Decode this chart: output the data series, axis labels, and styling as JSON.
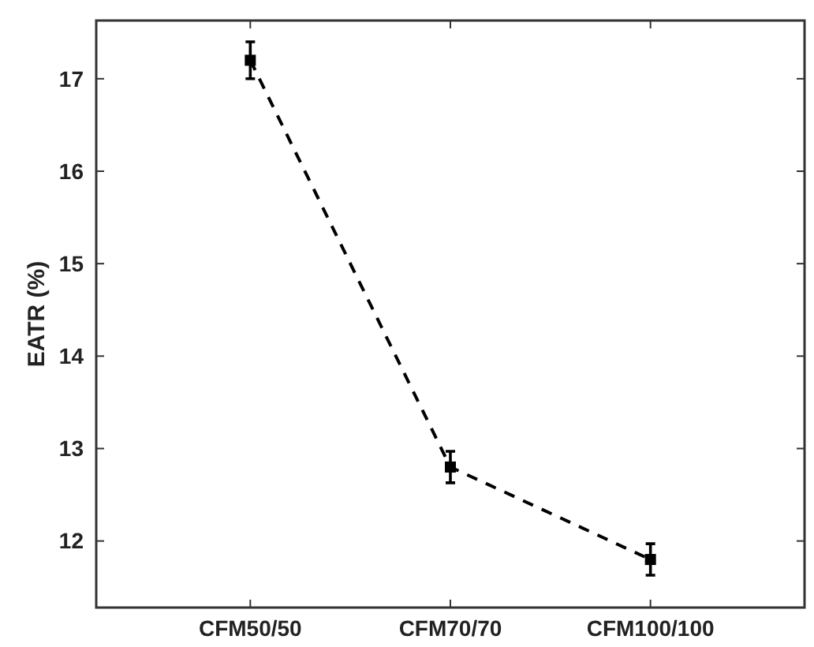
{
  "chart_data": {
    "type": "line",
    "ylabel": "EATR (%)",
    "categories": [
      "CFM50/50",
      "CFM70/70",
      "CFM100/100"
    ],
    "series": [
      {
        "color": "#000000",
        "values": [
          17.2,
          12.8,
          11.8
        ],
        "errors": [
          0.2,
          0.17,
          0.17
        ]
      }
    ],
    "ylim": [
      11.28,
      17.63
    ],
    "yticks": [
      12,
      13,
      14,
      15,
      16,
      17
    ],
    "marker": "square",
    "line_style": "dashed"
  }
}
